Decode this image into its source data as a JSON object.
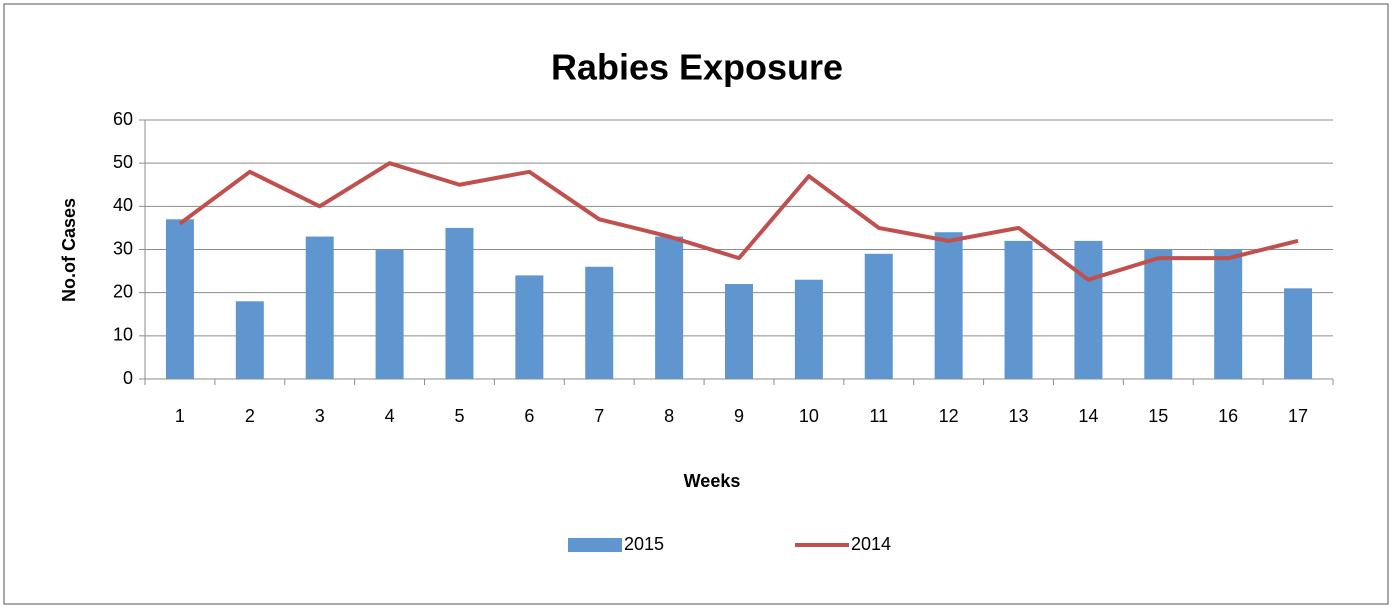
{
  "chart_data": {
    "type": "bar",
    "title": "Rabies Exposure",
    "x_label": "Weeks",
    "y_label": "No.of Cases",
    "categories": [
      "1",
      "2",
      "3",
      "4",
      "5",
      "6",
      "7",
      "8",
      "9",
      "10",
      "11",
      "12",
      "13",
      "14",
      "15",
      "16",
      "17"
    ],
    "series": [
      {
        "name": "2015",
        "type": "bar",
        "color": "#5f96cf",
        "values": [
          37,
          18,
          33,
          30,
          35,
          24,
          26,
          33,
          22,
          23,
          29,
          34,
          32,
          32,
          30,
          30,
          21
        ]
      },
      {
        "name": "2014",
        "type": "line",
        "color": "#c0504d",
        "values": [
          36,
          48,
          40,
          50,
          45,
          48,
          37,
          33,
          28,
          47,
          35,
          32,
          35,
          23,
          28,
          28,
          32
        ]
      }
    ],
    "ylim": [
      0,
      60
    ],
    "yticks": [
      0,
      10,
      20,
      30,
      40,
      50,
      60
    ],
    "grid": true,
    "legend": "bottom"
  }
}
